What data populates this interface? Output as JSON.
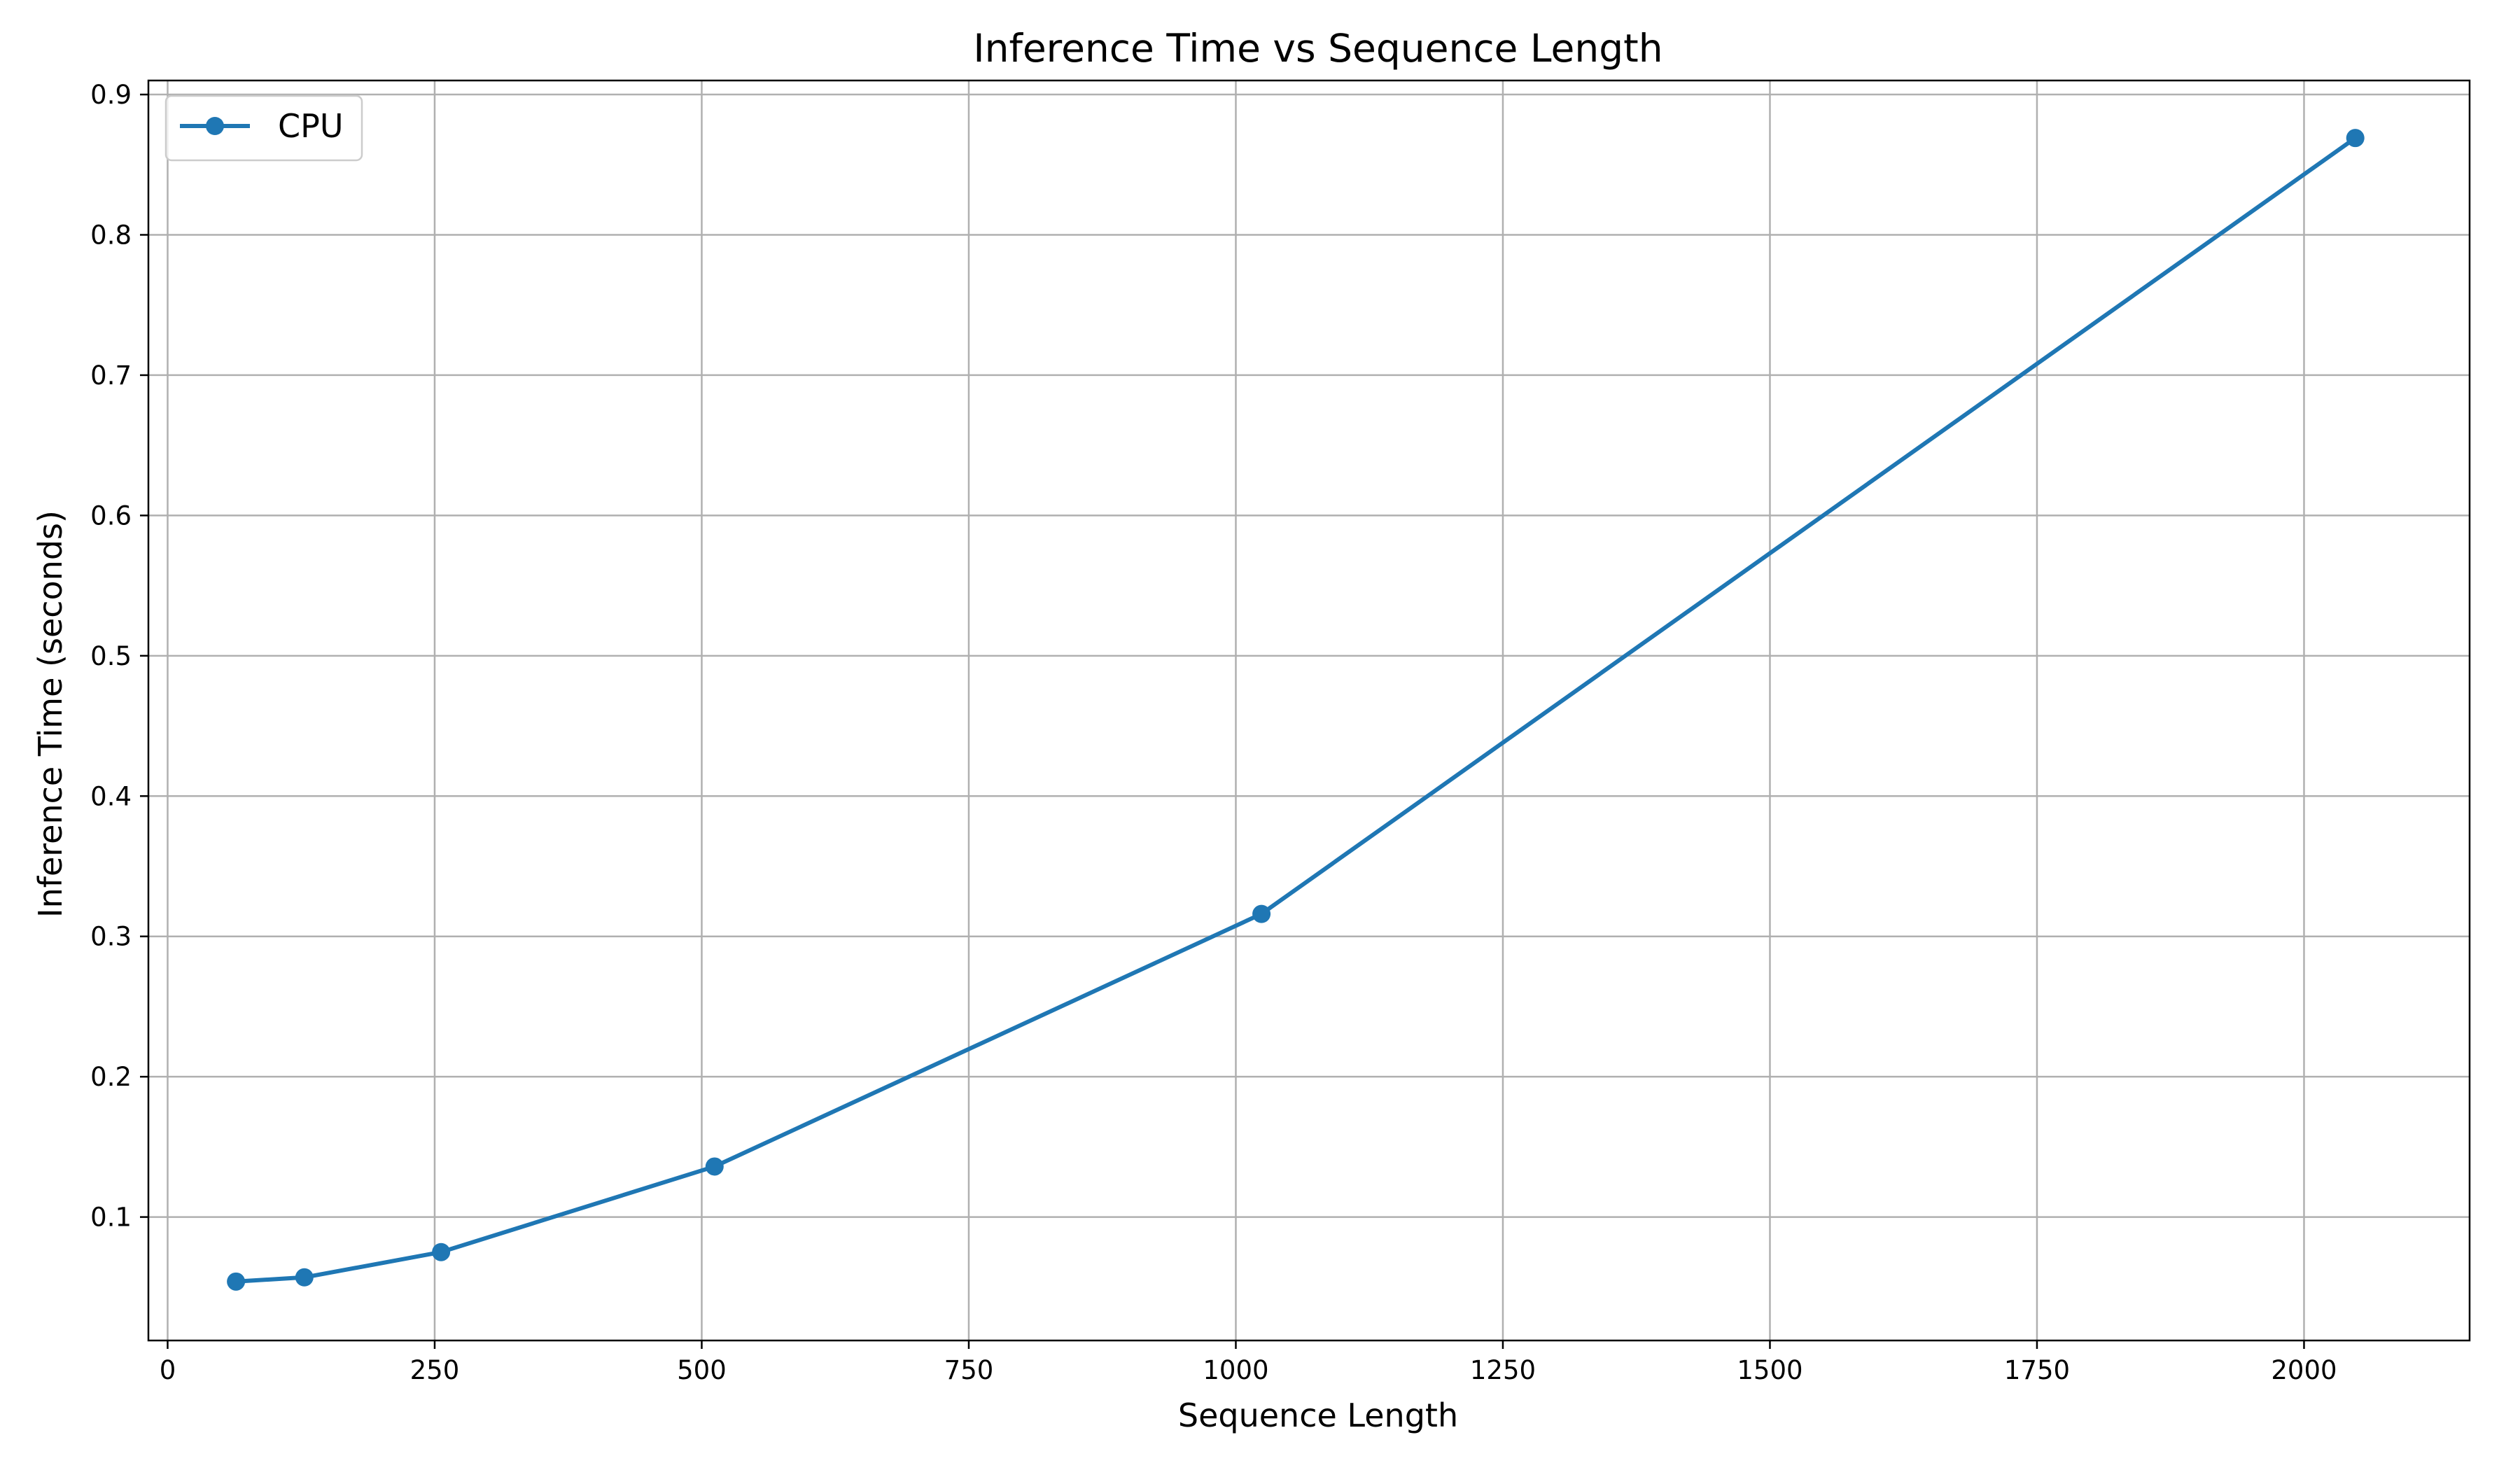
{
  "chart_data": {
    "type": "line",
    "title": "Inference Time vs Sequence Length",
    "xlabel": "Sequence Length",
    "ylabel": "Inference Time (seconds)",
    "xlim": [
      -18,
      2155
    ],
    "ylim": [
      0.012,
      0.91
    ],
    "xticks": [
      0,
      250,
      500,
      750,
      1000,
      1250,
      1500,
      1750,
      2000
    ],
    "xtick_labels": [
      "0",
      "250",
      "500",
      "750",
      "1000",
      "1250",
      "1500",
      "1750",
      "2000"
    ],
    "yticks": [
      0.1,
      0.2,
      0.3,
      0.4,
      0.5,
      0.6,
      0.7,
      0.8,
      0.9
    ],
    "ytick_labels": [
      "0.1",
      "0.2",
      "0.3",
      "0.4",
      "0.5",
      "0.6",
      "0.7",
      "0.8",
      "0.9"
    ],
    "grid": true,
    "legend_position": "top-left",
    "series": [
      {
        "name": "CPU",
        "color": "#1f77b4",
        "marker": "circle",
        "x": [
          64,
          128,
          256,
          512,
          1024,
          2048
        ],
        "y": [
          0.054,
          0.057,
          0.075,
          0.136,
          0.316,
          0.869
        ]
      }
    ]
  }
}
